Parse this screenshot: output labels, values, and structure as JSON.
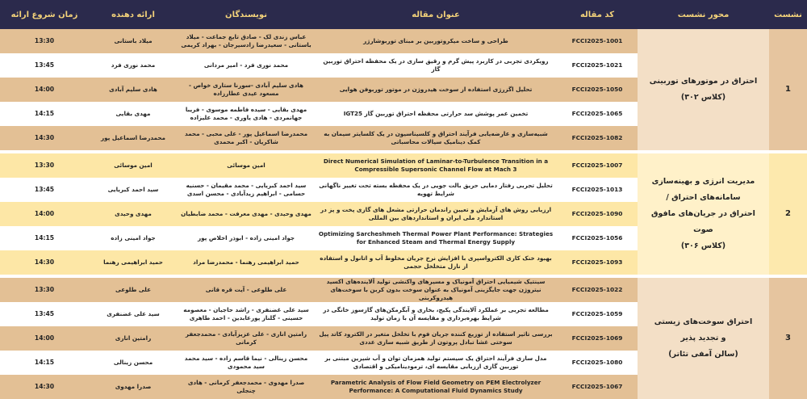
{
  "headers": {
    "session": "نشست",
    "axis": "محور نشست",
    "code": "کد مقاله",
    "title": "عنوان مقاله",
    "authors": "نویسندگان",
    "presenter": "ارائه دهنده",
    "time": "زمان شروع ارائه"
  },
  "colors": {
    "header_bg": "#2b2a4c",
    "header_text": "#f3d27a",
    "tan": "#e3c095",
    "yellow": "#fde7a6"
  },
  "sessions": [
    {
      "number": "1",
      "axis_lines": [
        "احتراق در موتورهای توربینی",
        "(کلاس ۳۰۲)"
      ],
      "rows": [
        {
          "code": "FCCI2025-1001",
          "title": "طراحی و ساخت میکروتوربین بر مبنای توربوشارژر",
          "authors": "عباس زندی لک - صادق تابع جماعت - میلاد باستانی - سعیدرضا زادسیرجان - بهراد کریمی",
          "presenter": "میلاد باستانی",
          "time": "13:30"
        },
        {
          "code": "FCCI2025-1021",
          "title": "رویکردی تجربی در کاربرد پیش گرم و رقیق سازی  در یک محفظه احتراق توربین گاز",
          "authors": "محمد نوری فرد - امیر مردانی",
          "presenter": "محمد نوری فرد",
          "time": "13:45"
        },
        {
          "code": "FCCI2025-1050",
          "title": "تحلیل اگزرژی استفاده از سوخت هیدروژن در موتور توربوفن هوایی",
          "authors": "هادی سلیم آبادی -سورنا ستاری خواص - مسعود عیدی عطارزاده",
          "presenter": "هادی سلیم آبادی",
          "time": "14:00"
        },
        {
          "code": "FCCI2025-1065",
          "title": "تخمین عمر پوشش سد حرارتی محفظه احتراق توربین گاز IGT25",
          "authors": "مهدی بقایی - سیده فاطمه موسوی - فریبا جهانمردی - هادی یاوری - محمد علیزاده",
          "presenter": "مهدی بقایی",
          "time": "14:15"
        },
        {
          "code": "FCCI2025-1082",
          "title": "شبیه‌سازی و عارضه‌یابی فرآیند احتراق و کلسیناسیون در یک کلسایتر سیمان به کمک دینامیک سیالات محاسباتی",
          "authors": "محمدرضا اسماعیل پور - علی محبی - محمد شاکریان - اکبر محمدی",
          "presenter": "محمدرضا اسماعیل پور",
          "time": "14:30"
        }
      ]
    },
    {
      "number": "2",
      "axis_lines": [
        "مدیریت انرژی و بهینه‌سازی",
        "سامانه‌های احتراق /",
        "احتراق در جریان‌های مافوق صوت",
        "(کلاس ۳۰۶)"
      ],
      "rows": [
        {
          "code": "FCCI2025-1007",
          "title": "Direct Numerical Simulation of Laminar-to-Turbulence Transition in a Compressible Supersonic Channel Flow at Mach 3",
          "authors": "امین موسائی",
          "presenter": "امین موسائی",
          "time": "13:30",
          "en": true
        },
        {
          "code": "FCCI2025-1013",
          "title": "تحلیل تجربی رفتار دمایی حریق بالت جویی در یک محفظه بسته تحت تغییر ناگهانی شرایط تهویه",
          "authors": "سید احمد کبریایی - محمد مقیمان - حسنیه حسامی - ابراهیم زیدآبادی - محسن اسدی",
          "presenter": "سید احمد کبریایی",
          "time": "13:45"
        },
        {
          "code": "FCCI2025-1090",
          "title": "ارزیابی روش های آزمایش و تعیین راندمان حرارتی مشعل های گازی پخت و پز در استاندارد ملی ایران و استانداردهای بین المللی",
          "authors": "مهدی وحیدی - مهدی معرفت - محمد ضابطیان",
          "presenter": "مهدی وحیدی",
          "time": "14:00"
        },
        {
          "code": "FCCI2025-1056",
          "title": "Optimizing Sarcheshmeh Thermal Power Plant Performance: Strategies for Enhanced Steam and Thermal Energy Supply",
          "authors": "جواد امینی زاده - ابوذر اخلاص پور",
          "presenter": "جواد امینی زاده",
          "time": "14:15",
          "en": true
        },
        {
          "code": "FCCI2025-1093",
          "title": "بهبود خنک کاری الکترواسپری با افزایش نرخ جریان مخلوط آب و اتانول و استفاده از نازل متخلخل حجمی",
          "authors": "حمید ابراهیمی رهنما - محمدرضا مراد",
          "presenter": "حمید ابراهیمی رهنما",
          "time": "14:30"
        }
      ]
    },
    {
      "number": "3",
      "axis_lines": [
        "احتراق سوخت‌های زیستی",
        "و تجدید پذیر",
        "(سالن آمفی تئاتر)"
      ],
      "rows": [
        {
          "code": "FCCI2025-1022",
          "title": "سینتیک شیمیایی احتراق آمونیاک و مسیرهای واکنشی تولید آلاینده‌های اکسید نیتروژن جهت جایگزینی آمونیاک به عنوان سوخت بدون کربن با سوخت‌های هیدروکربنی",
          "authors": "علی طلوعی - آیت قره قانی",
          "presenter": "علی طلوعی",
          "time": "13:30"
        },
        {
          "code": "FCCI2025-1059",
          "title": "مطالعه تجربی بر عملکرد آلایندگی پکیج، بخاری و آبگرمکن‌های گازسوز خانگی در شرایط بهره‌برداری و مقایسه آن با زمان تولید",
          "authors": "سید علی غضنفری - راشد حاجیان - معصومه حسینی - گلناز پورعابدین - احمد طاهری",
          "presenter": "سید علی غضنفری",
          "time": "13:45"
        },
        {
          "code": "FCCI2025-1069",
          "title": "بررسی تاثیر استفاده از توزیع کننده جریان فوم با تخلخل متغیر در الکترود کاتد پیل سوختی غشا تبادل پروتون از طریق شبیه سازی عددی",
          "authors": "رامتین اناری - علی عزیزآبادی - محمدجعفر کرمانی",
          "presenter": "رامتین اناری",
          "time": "14:00"
        },
        {
          "code": "FCCI2025-1080",
          "title": "مدل سازی فرآیند احتراق یک سیستم تولید همزمان توان و آب شیرین مبتنی بر توربین گازی ارزیابی مقایسه ای، ترمودینامیکی و اقتصادی",
          "authors": "محسن زینالی - نیما قاسم زاده - سید محمد سید محمودی",
          "presenter": "محسن زینالی",
          "time": "14:15"
        },
        {
          "code": "FCCI2025-1067",
          "title": "Parametric Analysis of Flow Field Geometry on PEM Electrolyzer Performance: A Computational Fluid Dynamics Study",
          "authors": "صدرا مهدوی -  محمدجعفر کرمانی - هادی چنجلی",
          "presenter": "صدرا مهدوی",
          "time": "14:30",
          "en": true
        }
      ]
    }
  ]
}
